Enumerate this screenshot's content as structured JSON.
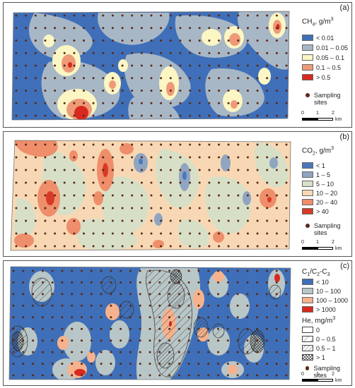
{
  "colors": {
    "a": [
      "#3f6fb8",
      "#a8b7c6",
      "#fbf6c4",
      "#ee9a78",
      "#d7291f"
    ],
    "b": [
      "#4a78b8",
      "#8fa5c2",
      "#d7e0c6",
      "#f8d8b4",
      "#ef8e6b",
      "#d73a26"
    ],
    "c": [
      "#3f6fb8",
      "#b9c6c7",
      "#f6b28d",
      "#d7291f"
    ],
    "site": "#5a2a18"
  },
  "panel_a": {
    "letter": "(a)",
    "title_base": "CH",
    "title_sub": "4",
    "title_rest": ", g/m",
    "title_sup": "3",
    "legend": [
      "< 0.01",
      "0.01 – 0.05",
      "0.05 – 0.1",
      "0.1 – 0.5",
      "> 0.5"
    ],
    "sites_line1": "Sampling",
    "sites_line2": "sites",
    "scale_ticks": [
      "0",
      "1",
      "2"
    ],
    "scale_unit": "km"
  },
  "panel_b": {
    "letter": "(b)",
    "title_base": "CO",
    "title_sub": "2",
    "title_rest": ", g/m",
    "title_sup": "3",
    "legend": [
      "< 1",
      "1 – 5",
      "5 – 10",
      "10 – 20",
      "20 – 40",
      "> 40"
    ],
    "sites_line1": "Sampling",
    "sites_line2": "sites",
    "scale_ticks": [
      "0",
      "1",
      "2"
    ],
    "scale_unit": "km"
  },
  "panel_c": {
    "letter": "(c)",
    "title_p1": "C",
    "title_s1": "1",
    "title_p2": "/C",
    "title_s2": "2",
    "title_p3": "-C",
    "title_s3": "3",
    "legend": [
      "< 10",
      "10 – 100",
      "100 – 1000",
      "> 1000"
    ],
    "he_title_base": "He, mg/m",
    "he_title_sup": "3",
    "he_legend": [
      "0",
      "0 – 0.5",
      "0.5 – 1",
      "> 1"
    ],
    "sites": "Sampling sites",
    "scale_ticks": [
      "0",
      "1",
      "2"
    ],
    "scale_unit": "km"
  }
}
